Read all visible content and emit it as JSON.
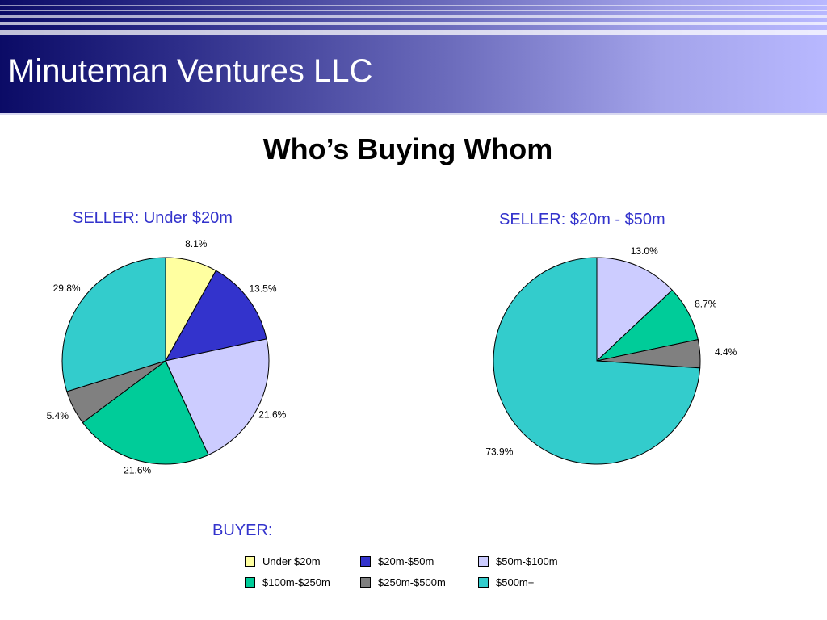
{
  "header": {
    "title": "Minuteman Ventures LLC"
  },
  "slide": {
    "title": "Who’s Buying Whom"
  },
  "chart_data": [
    {
      "type": "pie",
      "title": "SELLER: Under $20m",
      "categories": [
        "Under $20m",
        "$20m-$50m",
        "$50m-$100m",
        "$100m-$250m",
        "$250m-$500m",
        "$500m+"
      ],
      "values": [
        8.1,
        13.5,
        21.6,
        21.6,
        5.4,
        29.8
      ],
      "labels": [
        "8.1%",
        "13.5%",
        "21.6%",
        "21.6%",
        "5.4%",
        "29.8%"
      ],
      "colors": [
        "#ffffa0",
        "#3333cc",
        "#ccccff",
        "#00cc99",
        "#808080",
        "#33cccc"
      ],
      "legend_placement": "bottom"
    },
    {
      "type": "pie",
      "title": "SELLER: $20m - $50m",
      "categories": [
        "$50m-$100m",
        "$100m-$250m",
        "$250m-$500m",
        "$500m+"
      ],
      "values": [
        13.0,
        8.7,
        4.4,
        73.9
      ],
      "labels": [
        "13.0%",
        "8.7%",
        "4.4%",
        "73.9%"
      ],
      "colors": [
        "#ccccff",
        "#00cc99",
        "#808080",
        "#33cccc"
      ],
      "legend_placement": "bottom"
    }
  ],
  "legend": {
    "title": "BUYER:",
    "items": [
      {
        "label": "Under $20m",
        "color": "#ffffa0"
      },
      {
        "label": "$20m-$50m",
        "color": "#3333cc"
      },
      {
        "label": "$50m-$100m",
        "color": "#ccccff"
      },
      {
        "label": "$100m-$250m",
        "color": "#00cc99"
      },
      {
        "label": "$250m-$500m",
        "color": "#808080"
      },
      {
        "label": "$500m+",
        "color": "#33cccc"
      }
    ]
  }
}
